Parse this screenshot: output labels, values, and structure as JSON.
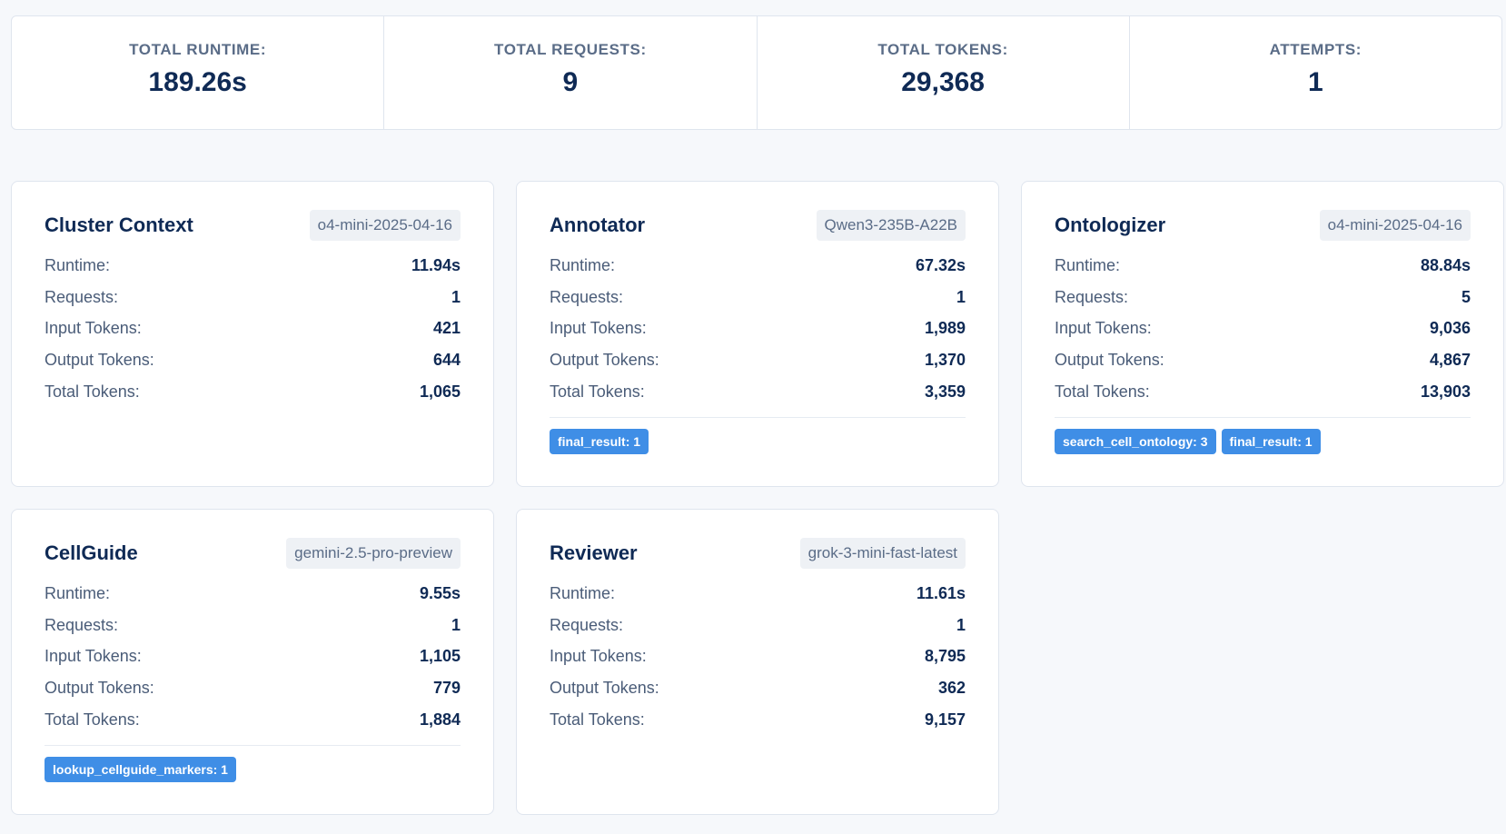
{
  "summary": {
    "runtime": {
      "label": "TOTAL RUNTIME:",
      "value": "189.26s"
    },
    "requests": {
      "label": "TOTAL REQUESTS:",
      "value": "9"
    },
    "tokens": {
      "label": "TOTAL TOKENS:",
      "value": "29,368"
    },
    "attempts": {
      "label": "ATTEMPTS:",
      "value": "1"
    }
  },
  "stat_labels": {
    "runtime": "Runtime:",
    "requests": "Requests:",
    "input_tokens": "Input Tokens:",
    "output_tokens": "Output Tokens:",
    "total_tokens": "Total Tokens:"
  },
  "agents": [
    {
      "name": "Cluster Context",
      "model": "o4-mini-2025-04-16",
      "runtime": "11.94s",
      "requests": "1",
      "input_tokens": "421",
      "output_tokens": "644",
      "total_tokens": "1,065",
      "tools": []
    },
    {
      "name": "Annotator",
      "model": "Qwen3-235B-A22B",
      "runtime": "67.32s",
      "requests": "1",
      "input_tokens": "1,989",
      "output_tokens": "1,370",
      "total_tokens": "3,359",
      "tools": [
        "final_result: 1"
      ]
    },
    {
      "name": "Ontologizer",
      "model": "o4-mini-2025-04-16",
      "runtime": "88.84s",
      "requests": "5",
      "input_tokens": "9,036",
      "output_tokens": "4,867",
      "total_tokens": "13,903",
      "tools": [
        "search_cell_ontology: 3",
        "final_result: 1"
      ]
    },
    {
      "name": "CellGuide",
      "model": "gemini-2.5-pro-preview",
      "runtime": "9.55s",
      "requests": "1",
      "input_tokens": "1,105",
      "output_tokens": "779",
      "total_tokens": "1,884",
      "tools": [
        "lookup_cellguide_markers: 1"
      ]
    },
    {
      "name": "Reviewer",
      "model": "grok-3-mini-fast-latest",
      "runtime": "11.61s",
      "requests": "1",
      "input_tokens": "8,795",
      "output_tokens": "362",
      "total_tokens": "9,157",
      "tools": []
    }
  ],
  "colors": {
    "accent": "#3f8ee6",
    "title": "#0f2a55",
    "label": "#4a5c78",
    "background": "#f6f8fb"
  }
}
